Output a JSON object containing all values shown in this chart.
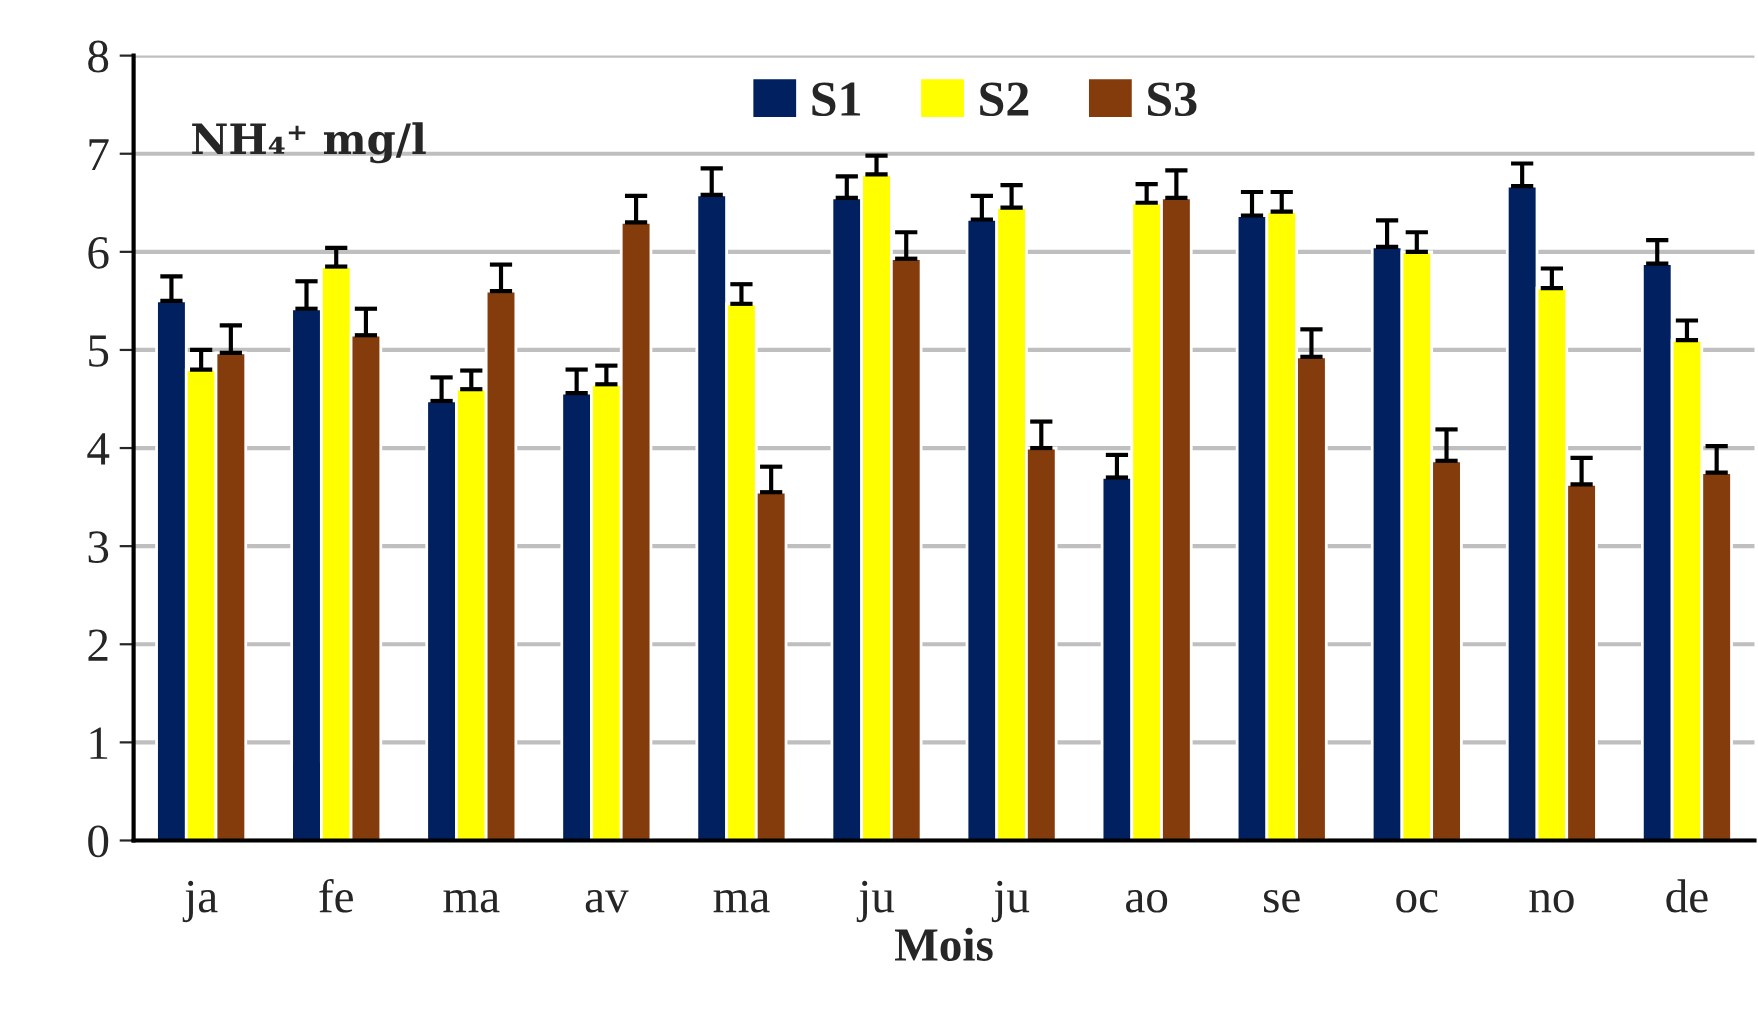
{
  "chart_data": {
    "type": "bar",
    "title": "NH₄⁺ mg/l",
    "xlabel": "Mois",
    "categories": [
      "ja",
      "fe",
      "ma",
      "av",
      "ma",
      "ju",
      "ju",
      "ao",
      "se",
      "oc",
      "no",
      "de"
    ],
    "series": [
      {
        "name": "S1",
        "color": "#002060",
        "values": [
          5.5,
          5.42,
          4.48,
          4.56,
          6.58,
          6.55,
          6.33,
          3.7,
          6.37,
          6.05,
          6.67,
          5.88
        ],
        "errors": [
          [
            5.5,
            5.75
          ],
          [
            5.42,
            5.7
          ],
          [
            4.48,
            4.72
          ],
          [
            4.56,
            4.8
          ],
          [
            6.58,
            6.85
          ],
          [
            6.55,
            6.77
          ],
          [
            6.33,
            6.57
          ],
          [
            3.7,
            3.93
          ],
          [
            6.37,
            6.61
          ],
          [
            6.05,
            6.32
          ],
          [
            6.67,
            6.9
          ],
          [
            5.88,
            6.12
          ]
        ]
      },
      {
        "name": "S2",
        "color": "#ffff00",
        "values": [
          4.8,
          5.85,
          4.6,
          4.65,
          5.47,
          6.79,
          6.45,
          6.5,
          6.41,
          6.0,
          5.63,
          5.1
        ],
        "errors": [
          [
            4.8,
            5.0
          ],
          [
            5.85,
            6.04
          ],
          [
            4.6,
            4.79
          ],
          [
            4.65,
            4.84
          ],
          [
            5.47,
            5.67
          ],
          [
            6.79,
            6.98
          ],
          [
            6.45,
            6.68
          ],
          [
            6.5,
            6.69
          ],
          [
            6.41,
            6.61
          ],
          [
            6.0,
            6.2
          ],
          [
            5.63,
            5.83
          ],
          [
            5.1,
            5.3
          ]
        ]
      },
      {
        "name": "S3",
        "color": "#843c0c",
        "values": [
          4.97,
          5.15,
          5.6,
          6.3,
          3.55,
          5.93,
          4.0,
          6.55,
          4.93,
          3.87,
          3.63,
          3.75
        ],
        "errors": [
          [
            4.97,
            5.25
          ],
          [
            5.15,
            5.42
          ],
          [
            5.6,
            5.87
          ],
          [
            6.3,
            6.57
          ],
          [
            3.55,
            3.81
          ],
          [
            5.93,
            6.2
          ],
          [
            4.0,
            4.27
          ],
          [
            6.55,
            6.83
          ],
          [
            4.93,
            5.21
          ],
          [
            3.87,
            4.19
          ],
          [
            3.63,
            3.9
          ],
          [
            3.75,
            4.02
          ]
        ]
      }
    ],
    "ylim": [
      0,
      8
    ],
    "yticks": [
      0,
      1,
      2,
      3,
      4,
      5,
      6,
      7,
      8
    ],
    "grid": "y",
    "legend": "top"
  }
}
